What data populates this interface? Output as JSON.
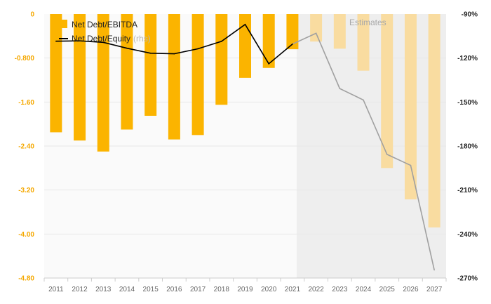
{
  "chart_data": {
    "type": "bar+line",
    "categories": [
      "2011",
      "2012",
      "2013",
      "2014",
      "2015",
      "2016",
      "2017",
      "2018",
      "2019",
      "2020",
      "2021",
      "2022",
      "2023",
      "2024",
      "2025",
      "2026",
      "2027"
    ],
    "estimates_from": "2022",
    "estimates_label": "Estimates",
    "series": [
      {
        "name": "Net Debt/EBITDA",
        "type": "bar",
        "axis": "left",
        "values": [
          -2.15,
          -2.3,
          -2.5,
          -2.1,
          -1.85,
          -2.28,
          -2.2,
          -1.65,
          -1.16,
          -0.98,
          -0.64,
          -0.5,
          -0.63,
          -1.03,
          -2.8,
          -3.37,
          -3.88
        ]
      },
      {
        "name": "Net Debt/Equity",
        "name_note": "(rhs)",
        "type": "line",
        "axis": "right",
        "values": [
          -108.5,
          -108.3,
          -109.3,
          -113.3,
          -116.7,
          -117.1,
          -113.7,
          -108.6,
          -97.1,
          -123.9,
          -110.5,
          -103.1,
          -140.8,
          -148.6,
          -185.7,
          -193.2,
          -264.5
        ]
      }
    ],
    "y_left": {
      "min": -4.8,
      "max": 0,
      "ticks": [
        "0",
        "-0.800",
        "-1.60",
        "-2.40",
        "-3.20",
        "-4.00",
        "-4.80"
      ],
      "tick_values": [
        0,
        -0.8,
        -1.6,
        -2.4,
        -3.2,
        -4.0,
        -4.8
      ]
    },
    "y_right": {
      "min": -270,
      "max": -90,
      "ticks": [
        "-90%",
        "-120%",
        "-150%",
        "-180%",
        "-210%",
        "-240%",
        "-270%"
      ],
      "tick_values": [
        -90,
        -120,
        -150,
        -180,
        -210,
        -240,
        -270
      ]
    },
    "grid": true,
    "legend_position": "top-left",
    "colors": {
      "bar": "#fbb400",
      "bar_estimate": "#f9dca0",
      "line": "#000000",
      "line_estimate": "#a0a0a0",
      "estimate_bg": "#eeeeee",
      "left_tick": "#f5a800",
      "grid": "#e8e8e8"
    }
  }
}
